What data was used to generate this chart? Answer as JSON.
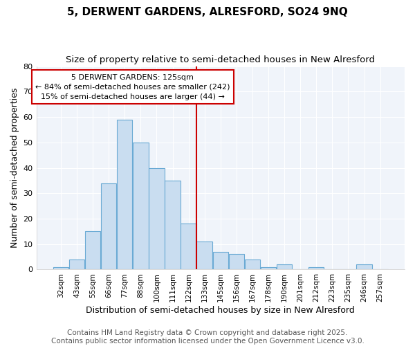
{
  "title": "5, DERWENT GARDENS, ALRESFORD, SO24 9NQ",
  "subtitle": "Size of property relative to semi-detached houses in New Alresford",
  "xlabel": "Distribution of semi-detached houses by size in New Alresford",
  "ylabel": "Number of semi-detached properties",
  "footer_line1": "Contains HM Land Registry data © Crown copyright and database right 2025.",
  "footer_line2": "Contains public sector information licensed under the Open Government Licence v3.0.",
  "categories": [
    "32sqm",
    "43sqm",
    "55sqm",
    "66sqm",
    "77sqm",
    "88sqm",
    "100sqm",
    "111sqm",
    "122sqm",
    "133sqm",
    "145sqm",
    "156sqm",
    "167sqm",
    "178sqm",
    "190sqm",
    "201sqm",
    "212sqm",
    "223sqm",
    "235sqm",
    "246sqm",
    "257sqm"
  ],
  "values": [
    1,
    4,
    15,
    34,
    59,
    50,
    40,
    35,
    18,
    11,
    7,
    6,
    4,
    1,
    2,
    0,
    1,
    0,
    0,
    2,
    0
  ],
  "bar_color": "#c9ddf0",
  "bar_edge_color": "#6aaad4",
  "vline_color": "#cc0000",
  "annotation_title": "5 DERWENT GARDENS: 125sqm",
  "annotation_line1": "← 84% of semi-detached houses are smaller (242)",
  "annotation_line2": "15% of semi-detached houses are larger (44) →",
  "annotation_box_facecolor": "#ffffff",
  "annotation_box_edgecolor": "#cc0000",
  "ylim": [
    0,
    80
  ],
  "yticks": [
    0,
    10,
    20,
    30,
    40,
    50,
    60,
    70,
    80
  ],
  "background_color": "#ffffff",
  "plot_background": "#f0f4fa",
  "grid_color": "#ffffff",
  "title_fontsize": 11,
  "subtitle_fontsize": 9.5,
  "label_fontsize": 9,
  "tick_fontsize": 8,
  "footer_fontsize": 7.5
}
